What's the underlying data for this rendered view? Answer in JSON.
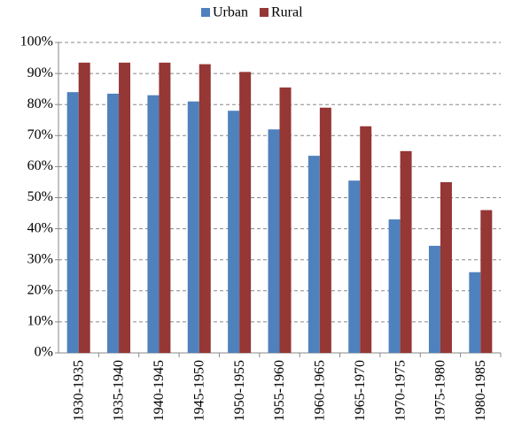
{
  "chart_data": {
    "type": "bar",
    "categories": [
      "1930-1935",
      "1935-1940",
      "1940-1945",
      "1945-1950",
      "1950-1955",
      "1955-1960",
      "1960-1965",
      "1965-1970",
      "1970-1975",
      "1975-1980",
      "1980-1985"
    ],
    "series": [
      {
        "name": "Urban",
        "color": "#4f81bd",
        "values": [
          84,
          83.5,
          83,
          81,
          78,
          72,
          63.5,
          55.5,
          43,
          34.5,
          26
        ]
      },
      {
        "name": "Rural",
        "color": "#953735",
        "values": [
          93.5,
          93.5,
          93.5,
          93,
          90.5,
          85.5,
          79,
          73,
          65,
          55,
          46
        ]
      }
    ],
    "ylim": [
      0,
      100
    ],
    "yticks": [
      {
        "value": 0,
        "label": "0%"
      },
      {
        "value": 10,
        "label": "10%"
      },
      {
        "value": 20,
        "label": "20%"
      },
      {
        "value": 30,
        "label": "30%"
      },
      {
        "value": 40,
        "label": "40%"
      },
      {
        "value": 50,
        "label": "50%"
      },
      {
        "value": 60,
        "label": "60%"
      },
      {
        "value": 70,
        "label": "70%"
      },
      {
        "value": 80,
        "label": "80%"
      },
      {
        "value": 90,
        "label": "90%"
      },
      {
        "value": 100,
        "label": "100%"
      }
    ],
    "grid": true,
    "legend": "top"
  }
}
